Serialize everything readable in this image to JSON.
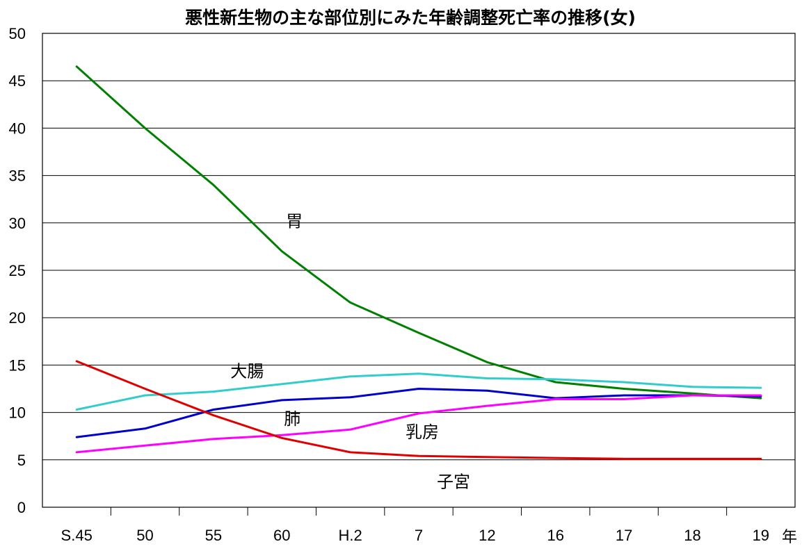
{
  "chart_data": {
    "type": "line",
    "title": "悪性新生物の主な部位別にみた年齢調整死亡率の推移(女)",
    "xlabel": "年",
    "ylabel": "",
    "categories": [
      "S.45",
      "50",
      "55",
      "60",
      "H.2",
      "7",
      "12",
      "16",
      "17",
      "18",
      "19"
    ],
    "ylim": [
      0,
      50
    ],
    "yticks": [
      0,
      5,
      10,
      15,
      20,
      25,
      30,
      35,
      40,
      45,
      50
    ],
    "grid": "horizontal",
    "legend": "none (inline labels)",
    "series": [
      {
        "name": "胃",
        "color": "#008000",
        "values": [
          46.5,
          40.0,
          34.0,
          27.0,
          21.6,
          18.4,
          15.3,
          13.2,
          12.5,
          12.0,
          11.5
        ]
      },
      {
        "name": "大腸",
        "color": "#33CCCC",
        "values": [
          10.3,
          11.8,
          12.2,
          13.0,
          13.8,
          14.1,
          13.6,
          13.5,
          13.2,
          12.7,
          12.6
        ]
      },
      {
        "name": "肺",
        "color": "#0000CC",
        "values": [
          7.4,
          8.3,
          10.3,
          11.3,
          11.6,
          12.5,
          12.3,
          11.5,
          11.8,
          11.8,
          11.7
        ]
      },
      {
        "name": "乳房",
        "color": "#FF00FF",
        "values": [
          5.8,
          6.5,
          7.2,
          7.6,
          8.2,
          9.9,
          10.7,
          11.4,
          11.4,
          11.8,
          11.8
        ]
      },
      {
        "name": "子宮",
        "color": "#E00000",
        "values": [
          15.4,
          12.5,
          9.7,
          7.3,
          5.8,
          5.4,
          5.3,
          5.2,
          5.1,
          5.1,
          5.1
        ]
      }
    ]
  }
}
